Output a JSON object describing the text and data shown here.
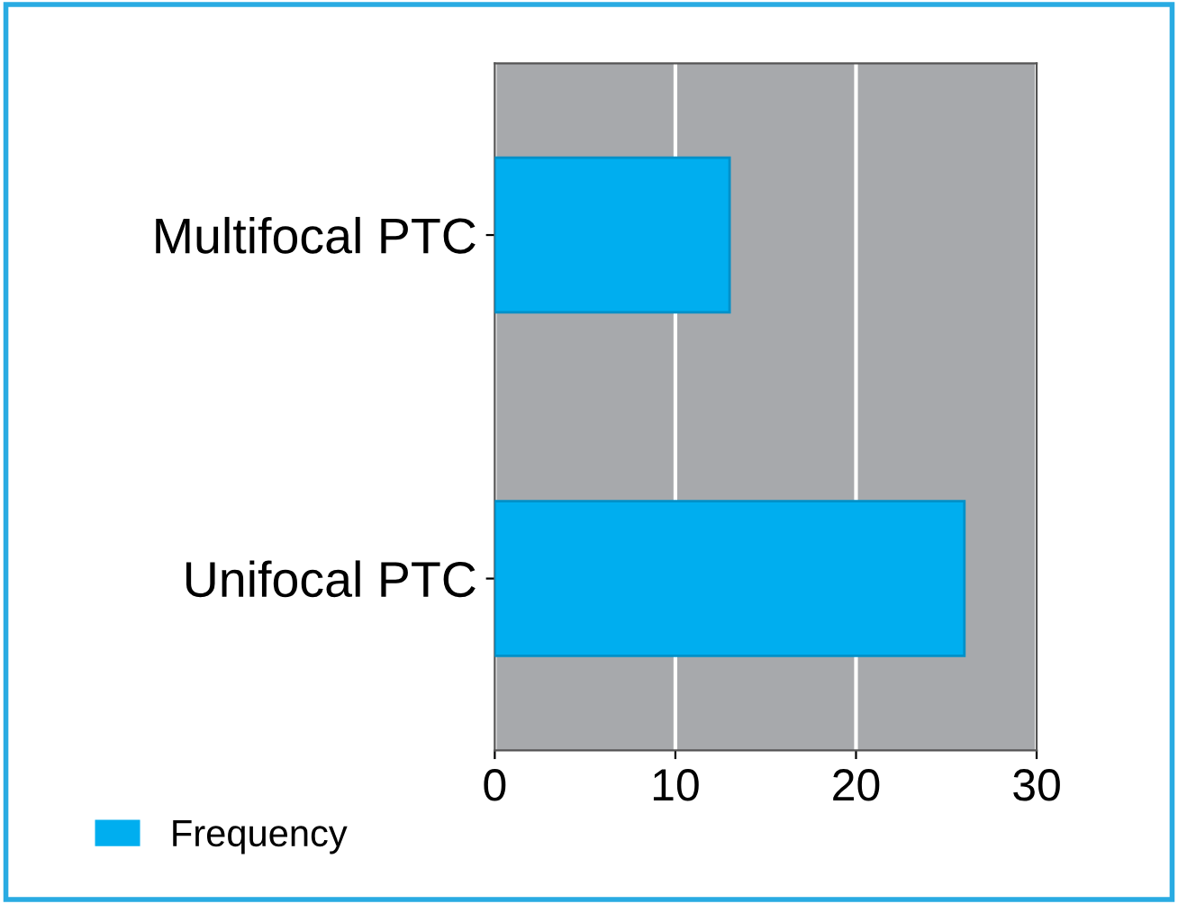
{
  "chart_data": {
    "type": "bar",
    "orientation": "horizontal",
    "categories": [
      "Multifocal PTC",
      "Unifocal PTC"
    ],
    "series": [
      {
        "name": "Frequency",
        "color": "#00aeef",
        "values": [
          13,
          26
        ]
      }
    ],
    "xlim": [
      0,
      30
    ],
    "xticks": [
      0,
      10,
      20,
      30
    ],
    "grid": "x",
    "legend": "bottom left"
  }
}
